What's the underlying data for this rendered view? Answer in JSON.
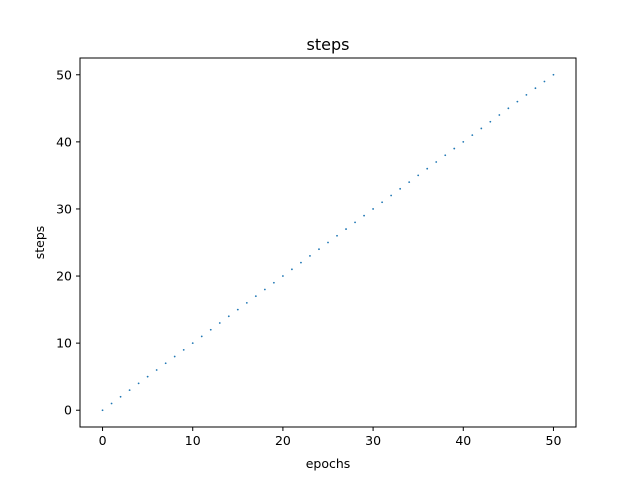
{
  "chart_data": {
    "type": "scatter",
    "title": "steps",
    "xlabel": "epochs",
    "ylabel": "steps",
    "xlim": [
      -2.5,
      52.5
    ],
    "ylim": [
      -2.5,
      52.5
    ],
    "x_ticks": [
      0,
      10,
      20,
      30,
      40,
      50
    ],
    "y_ticks": [
      0,
      10,
      20,
      30,
      40,
      50
    ],
    "grid": false,
    "series": [
      {
        "color": "#1f77b4",
        "marker": "dot",
        "x": [
          0,
          1,
          2,
          3,
          4,
          5,
          6,
          7,
          8,
          9,
          10,
          11,
          12,
          13,
          14,
          15,
          16,
          17,
          18,
          19,
          20,
          21,
          22,
          23,
          24,
          25,
          26,
          27,
          28,
          29,
          30,
          31,
          32,
          33,
          34,
          35,
          36,
          37,
          38,
          39,
          40,
          41,
          42,
          43,
          44,
          45,
          46,
          47,
          48,
          49,
          50
        ],
        "y": [
          0,
          1,
          2,
          3,
          4,
          5,
          6,
          7,
          8,
          9,
          10,
          11,
          12,
          13,
          14,
          15,
          16,
          17,
          18,
          19,
          20,
          21,
          22,
          23,
          24,
          25,
          26,
          27,
          28,
          29,
          30,
          31,
          32,
          33,
          34,
          35,
          36,
          37,
          38,
          39,
          40,
          41,
          42,
          43,
          44,
          45,
          46,
          47,
          48,
          49,
          50
        ]
      }
    ]
  }
}
